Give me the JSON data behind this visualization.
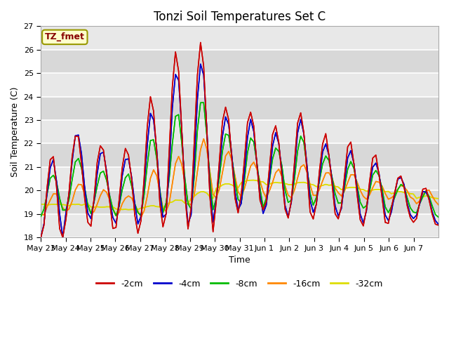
{
  "title": "Tonzi Soil Temperatures Set C",
  "xlabel": "Time",
  "ylabel": "Soil Temperature (C)",
  "ylim": [
    18.0,
    27.0
  ],
  "yticks": [
    18.0,
    19.0,
    20.0,
    21.0,
    22.0,
    23.0,
    24.0,
    25.0,
    26.0,
    27.0
  ],
  "xtick_labels": [
    "May 23",
    "May 24",
    "May 25",
    "May 26",
    "May 27",
    "May 28",
    "May 29",
    "May 30",
    "May 31",
    "Jun 1",
    "Jun 2",
    "Jun 3",
    "Jun 4",
    "Jun 5",
    "Jun 6",
    "Jun 7"
  ],
  "annotation_text": "TZ_fmet",
  "annotation_bg": "#ffffcc",
  "annotation_border": "#999900",
  "colors": {
    "-2cm": "#cc0000",
    "-4cm": "#0000cc",
    "-8cm": "#00bb00",
    "-16cm": "#ff8800",
    "-32cm": "#dddd00"
  },
  "legend_labels": [
    "-2cm",
    "-4cm",
    "-8cm",
    "-16cm",
    "-32cm"
  ],
  "fig_bg": "#ffffff",
  "plot_bg": "#f0f0f0",
  "grid_color": "#ffffff",
  "title_fontsize": 12,
  "label_fontsize": 9,
  "tick_fontsize": 8,
  "n_days": 16,
  "pts_per_day": 8,
  "seed": 12345,
  "base_2cm": [
    19.3,
    20.5,
    20.2,
    20.0,
    21.2,
    22.2,
    22.3,
    21.3,
    21.3,
    20.8,
    21.0,
    20.5,
    20.3,
    20.0,
    19.7,
    19.3
  ],
  "amp_2cm": [
    2.2,
    2.0,
    1.8,
    1.8,
    2.8,
    3.8,
    4.0,
    2.3,
    2.2,
    2.0,
    2.3,
    1.8,
    1.8,
    1.5,
    1.0,
    0.8
  ],
  "base_4cm": [
    19.5,
    20.7,
    20.2,
    20.0,
    21.0,
    21.8,
    22.0,
    21.2,
    21.0,
    20.7,
    21.0,
    20.5,
    20.2,
    20.0,
    19.7,
    19.3
  ],
  "amp_4cm": [
    1.8,
    1.8,
    1.5,
    1.5,
    2.3,
    3.3,
    3.5,
    2.0,
    2.0,
    1.8,
    2.0,
    1.5,
    1.5,
    1.3,
    0.9,
    0.7
  ],
  "base_8cm": [
    19.8,
    20.3,
    20.0,
    19.8,
    20.6,
    21.3,
    21.5,
    21.0,
    20.8,
    20.7,
    20.8,
    20.5,
    20.2,
    20.0,
    19.7,
    19.4
  ],
  "amp_8cm": [
    0.9,
    1.1,
    0.9,
    0.9,
    1.7,
    2.0,
    2.5,
    1.5,
    1.5,
    1.2,
    1.5,
    1.0,
    1.0,
    0.9,
    0.6,
    0.5
  ],
  "base_16cm": [
    19.4,
    19.7,
    19.5,
    19.4,
    19.9,
    20.3,
    20.8,
    20.7,
    20.5,
    20.3,
    20.4,
    20.3,
    20.2,
    20.0,
    19.9,
    19.7
  ],
  "amp_16cm": [
    0.5,
    0.6,
    0.5,
    0.4,
    1.0,
    1.2,
    1.4,
    1.0,
    0.7,
    0.6,
    0.7,
    0.5,
    0.5,
    0.4,
    0.3,
    0.3
  ],
  "base_32cm": [
    19.4,
    19.4,
    19.3,
    19.2,
    19.3,
    19.5,
    19.8,
    20.2,
    20.4,
    20.3,
    20.3,
    20.2,
    20.1,
    20.0,
    19.9,
    19.7
  ],
  "amp_32cm": [
    0.0,
    0.0,
    0.0,
    0.0,
    0.05,
    0.1,
    0.15,
    0.1,
    0.05,
    0.05,
    0.05,
    0.05,
    0.05,
    0.05,
    0.05,
    0.05
  ]
}
